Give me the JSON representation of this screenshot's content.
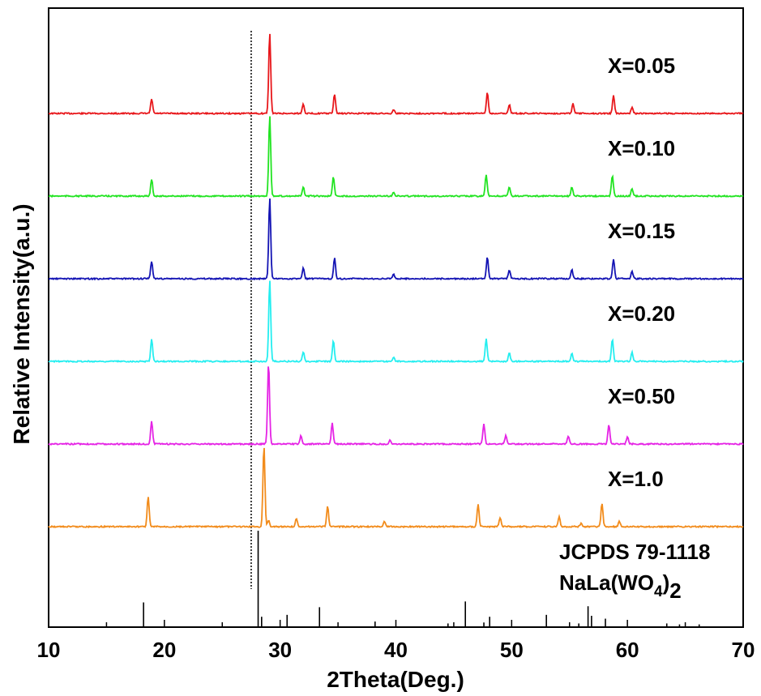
{
  "chart_data": {
    "type": "line",
    "title": "",
    "xlabel": "2Theta(Deg.)",
    "ylabel": "Relative Intensity(a.u.)",
    "xlim": [
      10,
      70
    ],
    "x_ticks": [
      "10",
      "20",
      "30",
      "40",
      "50",
      "60",
      "70"
    ],
    "y_ticks_shown": false,
    "grid": false,
    "legend": "inline labels at right of each pattern",
    "reference_line_2theta": 27.5,
    "peak_width": 0.12,
    "series": [
      {
        "name": "X=0.05",
        "color": "#e8171b",
        "baseline_offset": 5,
        "peaks": [
          [
            18.9,
            0.18
          ],
          [
            29.1,
            1.0
          ],
          [
            32.0,
            0.12
          ],
          [
            34.7,
            0.24
          ],
          [
            39.8,
            0.05
          ],
          [
            47.9,
            0.26
          ],
          [
            49.8,
            0.11
          ],
          [
            55.3,
            0.12
          ],
          [
            58.8,
            0.23
          ],
          [
            60.4,
            0.08
          ]
        ]
      },
      {
        "name": "X=0.10",
        "color": "#22e422",
        "baseline_offset": 4,
        "peaks": [
          [
            18.9,
            0.21
          ],
          [
            29.1,
            1.0
          ],
          [
            32.0,
            0.11
          ],
          [
            34.6,
            0.24
          ],
          [
            39.8,
            0.05
          ],
          [
            47.8,
            0.26
          ],
          [
            49.8,
            0.11
          ],
          [
            55.2,
            0.11
          ],
          [
            58.7,
            0.26
          ],
          [
            60.4,
            0.09
          ]
        ]
      },
      {
        "name": "X=0.15",
        "color": "#1414b4",
        "baseline_offset": 3,
        "peaks": [
          [
            18.9,
            0.22
          ],
          [
            29.1,
            1.0
          ],
          [
            32.0,
            0.13
          ],
          [
            34.7,
            0.26
          ],
          [
            39.8,
            0.06
          ],
          [
            47.9,
            0.27
          ],
          [
            49.8,
            0.11
          ],
          [
            55.2,
            0.11
          ],
          [
            58.8,
            0.24
          ],
          [
            60.4,
            0.09
          ]
        ]
      },
      {
        "name": "X=0.20",
        "color": "#25eef0",
        "baseline_offset": 2,
        "peaks": [
          [
            18.9,
            0.27
          ],
          [
            29.1,
            1.0
          ],
          [
            32.0,
            0.12
          ],
          [
            34.6,
            0.26
          ],
          [
            39.8,
            0.05
          ],
          [
            47.8,
            0.28
          ],
          [
            49.8,
            0.1
          ],
          [
            55.2,
            0.1
          ],
          [
            58.7,
            0.27
          ],
          [
            60.4,
            0.11
          ]
        ]
      },
      {
        "name": "X=0.50",
        "color": "#e524e5",
        "baseline_offset": 1,
        "peaks": [
          [
            18.9,
            0.28
          ],
          [
            29.0,
            1.0
          ],
          [
            31.8,
            0.1
          ],
          [
            34.5,
            0.26
          ],
          [
            39.5,
            0.05
          ],
          [
            47.6,
            0.25
          ],
          [
            49.5,
            0.11
          ],
          [
            54.9,
            0.1
          ],
          [
            58.4,
            0.24
          ],
          [
            60.0,
            0.09
          ]
        ]
      },
      {
        "name": "X=1.0",
        "color": "#f28c1c",
        "baseline_offset": 0,
        "peaks": [
          [
            18.6,
            0.37
          ],
          [
            28.6,
            1.0
          ],
          [
            29.0,
            0.08
          ],
          [
            31.4,
            0.1
          ],
          [
            34.1,
            0.26
          ],
          [
            39.0,
            0.07
          ],
          [
            47.1,
            0.28
          ],
          [
            49.0,
            0.11
          ],
          [
            54.1,
            0.12
          ],
          [
            56.0,
            0.04
          ],
          [
            57.8,
            0.29
          ],
          [
            59.3,
            0.07
          ]
        ]
      }
    ],
    "reference": {
      "name": "JCPDS 79-1118",
      "formula": "NaLa(WO4)2",
      "formula_main": "NaLa(WO",
      "formula_sub1": "4",
      "formula_tail": ")",
      "formula_sub2": "2",
      "lines": [
        [
          18.2,
          0.25
        ],
        [
          28.1,
          1.0
        ],
        [
          28.4,
          0.1
        ],
        [
          30.6,
          0.12
        ],
        [
          33.4,
          0.2
        ],
        [
          38.2,
          0.05
        ],
        [
          44.5,
          0.03
        ],
        [
          46.0,
          0.26
        ],
        [
          47.6,
          0.04
        ],
        [
          48.1,
          0.1
        ],
        [
          53.0,
          0.12
        ],
        [
          55.8,
          0.03
        ],
        [
          56.6,
          0.21
        ],
        [
          56.9,
          0.11
        ],
        [
          58.1,
          0.08
        ],
        [
          63.4,
          0.03
        ],
        [
          64.5,
          0.02
        ],
        [
          66.2,
          0.02
        ]
      ]
    }
  }
}
